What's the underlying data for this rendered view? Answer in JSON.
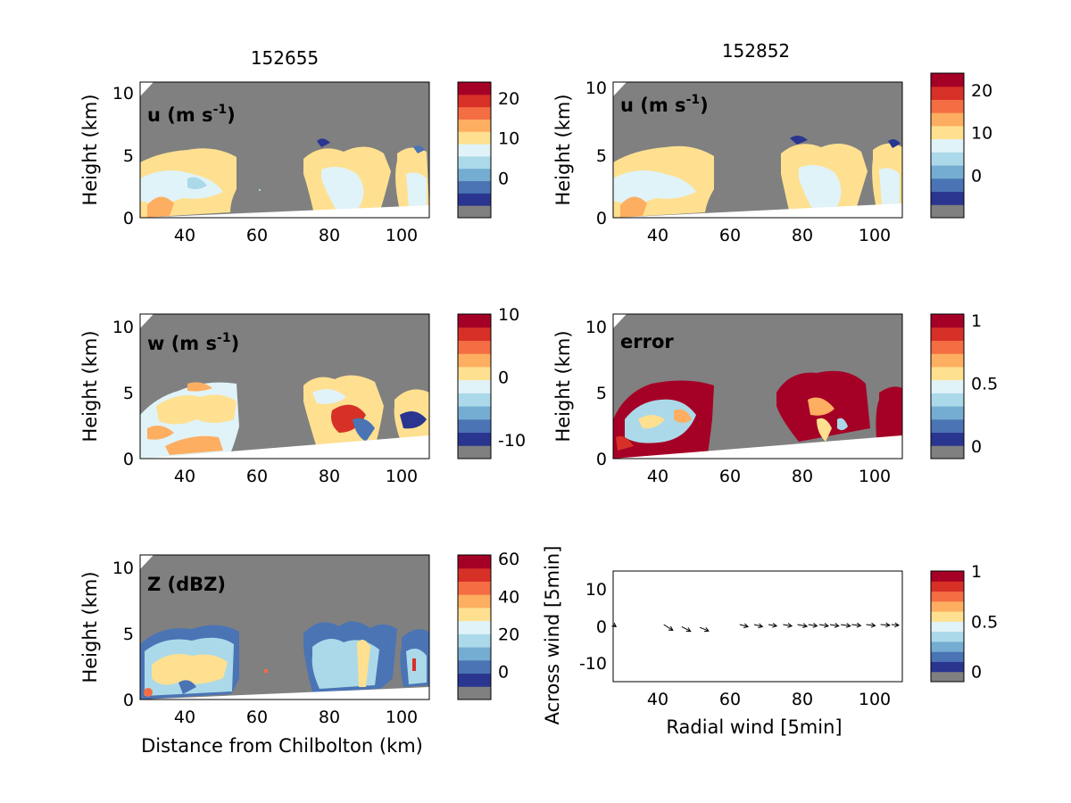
{
  "figure": {
    "column_titles": [
      "152655",
      "152852"
    ],
    "colors": {
      "background_gray": "#808080",
      "colormap": [
        "#808080",
        "#2a3590",
        "#4a74b4",
        "#74add1",
        "#abd9e9",
        "#e0f3f8",
        "#fee090",
        "#fdae61",
        "#f46d43",
        "#d73027",
        "#a50026"
      ]
    }
  },
  "chart_data": [
    {
      "id": "u_left",
      "type": "heatmap",
      "ylabel": "Height (km)",
      "panel_label": "u (m s",
      "panel_label_sup": "-1",
      "panel_label_end": ")",
      "xlim": [
        27,
        107
      ],
      "ylim": [
        0,
        11
      ],
      "xticks": [
        "40",
        "60",
        "80",
        "100"
      ],
      "yticks": [
        "0",
        "5",
        "10"
      ],
      "colorbar": {
        "range": [
          -10,
          24
        ],
        "ticks": [
          {
            "value": 0,
            "label": "0"
          },
          {
            "value": 10,
            "label": "10"
          },
          {
            "value": 20,
            "label": "20"
          }
        ]
      }
    },
    {
      "id": "u_right",
      "type": "heatmap",
      "ylabel": "Height (km)",
      "panel_label": "u (m s",
      "panel_label_sup": "-1",
      "panel_label_end": ")",
      "xlim": [
        27,
        107
      ],
      "ylim": [
        0,
        11
      ],
      "xticks": [
        "40",
        "60",
        "80",
        "100"
      ],
      "yticks": [
        "0",
        "5",
        "10"
      ],
      "colorbar": {
        "range": [
          -10,
          24
        ],
        "ticks": [
          {
            "value": 0,
            "label": "0"
          },
          {
            "value": 10,
            "label": "10"
          },
          {
            "value": 20,
            "label": "20"
          }
        ]
      }
    },
    {
      "id": "w_left",
      "type": "heatmap",
      "ylabel": "Height (km)",
      "panel_label": "w (m s",
      "panel_label_sup": "-1",
      "panel_label_end": ")",
      "xlim": [
        27,
        107
      ],
      "ylim": [
        0,
        11
      ],
      "xticks": [
        "40",
        "60",
        "80",
        "100"
      ],
      "yticks": [
        "0",
        "5",
        "10"
      ],
      "colorbar": {
        "range": [
          -13,
          10
        ],
        "ticks": [
          {
            "value": -10,
            "label": "-10"
          },
          {
            "value": 0,
            "label": "0"
          },
          {
            "value": 10,
            "label": "10"
          }
        ]
      }
    },
    {
      "id": "error_right",
      "type": "heatmap",
      "ylabel": "Height (km)",
      "panel_label": "error",
      "panel_label_sup": "",
      "panel_label_end": "",
      "xlim": [
        27,
        107
      ],
      "ylim": [
        0,
        11
      ],
      "xticks": [
        "40",
        "60",
        "80",
        "100"
      ],
      "yticks": [
        "0",
        "5",
        "10"
      ],
      "colorbar": {
        "range": [
          -0.1,
          1.05
        ],
        "ticks": [
          {
            "value": 0,
            "label": "0"
          },
          {
            "value": 0.5,
            "label": "0.5"
          },
          {
            "value": 1,
            "label": "1"
          }
        ]
      }
    },
    {
      "id": "z_left",
      "type": "heatmap",
      "ylabel": "Height (km)",
      "xlabel": "Distance from Chilbolton (km)",
      "panel_label": "Z (dBZ)",
      "panel_label_sup": "",
      "panel_label_end": "",
      "xlim": [
        27,
        107
      ],
      "ylim": [
        0,
        11
      ],
      "xticks": [
        "40",
        "60",
        "80",
        "100"
      ],
      "yticks": [
        "0",
        "5",
        "10"
      ],
      "colorbar": {
        "range": [
          -15,
          62
        ],
        "ticks": [
          {
            "value": 0,
            "label": "0"
          },
          {
            "value": 20,
            "label": "20"
          },
          {
            "value": 40,
            "label": "40"
          },
          {
            "value": 60,
            "label": "60"
          }
        ]
      }
    },
    {
      "id": "quiver_right",
      "type": "scatter",
      "ylabel": "Across wind [5min]",
      "xlabel": "Radial wind [5min]",
      "xlim": [
        27,
        107
      ],
      "ylim": [
        -16,
        15
      ],
      "xticks": [
        "40",
        "60",
        "80",
        "100"
      ],
      "yticks": [
        "-10",
        "0",
        "10"
      ],
      "colorbar": {
        "range": [
          -0.1,
          1.0
        ],
        "ticks": [
          {
            "value": 0,
            "label": "0"
          },
          {
            "value": 0.5,
            "label": "0.5"
          },
          {
            "value": 1,
            "label": "1"
          }
        ]
      },
      "arrows": [
        {
          "x": 27,
          "y": 0,
          "dx": 0.8,
          "dy": -0.6
        },
        {
          "x": 41,
          "y": 0,
          "dx": 2.5,
          "dy": -1.6
        },
        {
          "x": 46,
          "y": -0.6,
          "dx": 2.4,
          "dy": -1.3
        },
        {
          "x": 51,
          "y": -0.8,
          "dx": 2.4,
          "dy": -1.0
        },
        {
          "x": 62,
          "y": 0,
          "dx": 2.3,
          "dy": -0.6
        },
        {
          "x": 66,
          "y": 0,
          "dx": 2.3,
          "dy": -0.6
        },
        {
          "x": 70,
          "y": 0,
          "dx": 2.2,
          "dy": -0.4
        },
        {
          "x": 74,
          "y": 0,
          "dx": 2.4,
          "dy": -0.4
        },
        {
          "x": 78,
          "y": 0,
          "dx": 2.6,
          "dy": -0.5
        },
        {
          "x": 81,
          "y": 0,
          "dx": 2.4,
          "dy": -0.4
        },
        {
          "x": 84,
          "y": 0,
          "dx": 2.5,
          "dy": -0.4
        },
        {
          "x": 87,
          "y": 0,
          "dx": 2.4,
          "dy": -0.4
        },
        {
          "x": 90,
          "y": 0,
          "dx": 2.6,
          "dy": -0.4
        },
        {
          "x": 93,
          "y": 0,
          "dx": 2.5,
          "dy": -0.3
        },
        {
          "x": 97,
          "y": 0,
          "dx": 2.5,
          "dy": -0.3
        },
        {
          "x": 101,
          "y": 0,
          "dx": 2.5,
          "dy": -0.2
        },
        {
          "x": 104,
          "y": 0,
          "dx": 2.0,
          "dy": -0.2
        }
      ]
    }
  ]
}
